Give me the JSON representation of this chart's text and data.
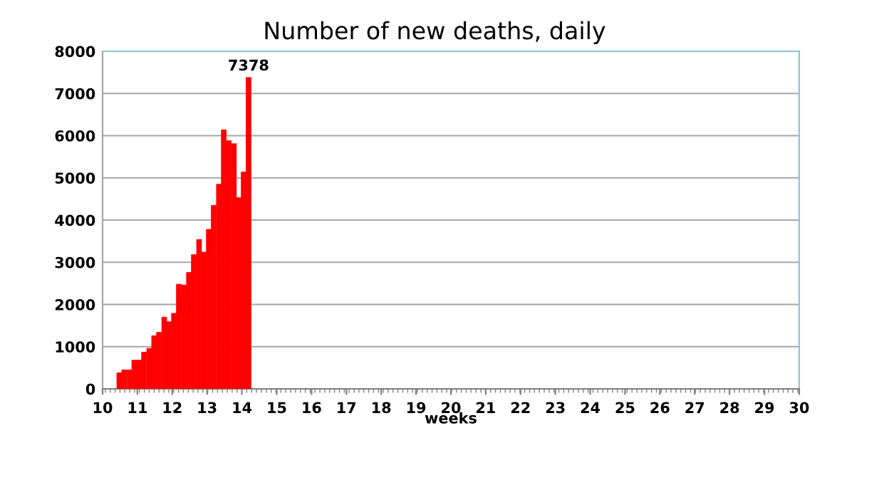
{
  "chart_data": {
    "type": "bar",
    "title": "Number of new deaths, daily",
    "xlabel": "weeks",
    "x": [
      10.48,
      10.62,
      10.77,
      10.91,
      11.05,
      11.19,
      11.34,
      11.48,
      11.62,
      11.77,
      11.91,
      12.05,
      12.19,
      12.34,
      12.48,
      12.62,
      12.77,
      12.91,
      13.05,
      13.19,
      13.34,
      13.48,
      13.62,
      13.77,
      13.91,
      14.05,
      14.19
    ],
    "values": [
      380,
      450,
      450,
      680,
      680,
      870,
      960,
      1260,
      1340,
      1700,
      1590,
      1790,
      2480,
      2460,
      2760,
      3180,
      3540,
      3240,
      3780,
      4350,
      4850,
      6140,
      5880,
      5810,
      4530,
      5140,
      7378
    ],
    "value_labels": [
      null,
      null,
      null,
      null,
      null,
      null,
      null,
      null,
      null,
      null,
      null,
      null,
      null,
      null,
      null,
      null,
      null,
      null,
      null,
      null,
      null,
      null,
      null,
      null,
      null,
      null,
      "7378"
    ],
    "color": "#ff0000",
    "xlim": [
      10,
      30
    ],
    "xticks": [
      10,
      11,
      12,
      13,
      14,
      15,
      16,
      17,
      18,
      19,
      20,
      21,
      22,
      23,
      24,
      25,
      26,
      27,
      28,
      29,
      30
    ],
    "ylim": [
      0,
      8000
    ],
    "yticks": [
      0,
      1000,
      2000,
      3000,
      4000,
      5000,
      6000,
      7000,
      8000
    ],
    "grid": "y",
    "legend": false
  }
}
